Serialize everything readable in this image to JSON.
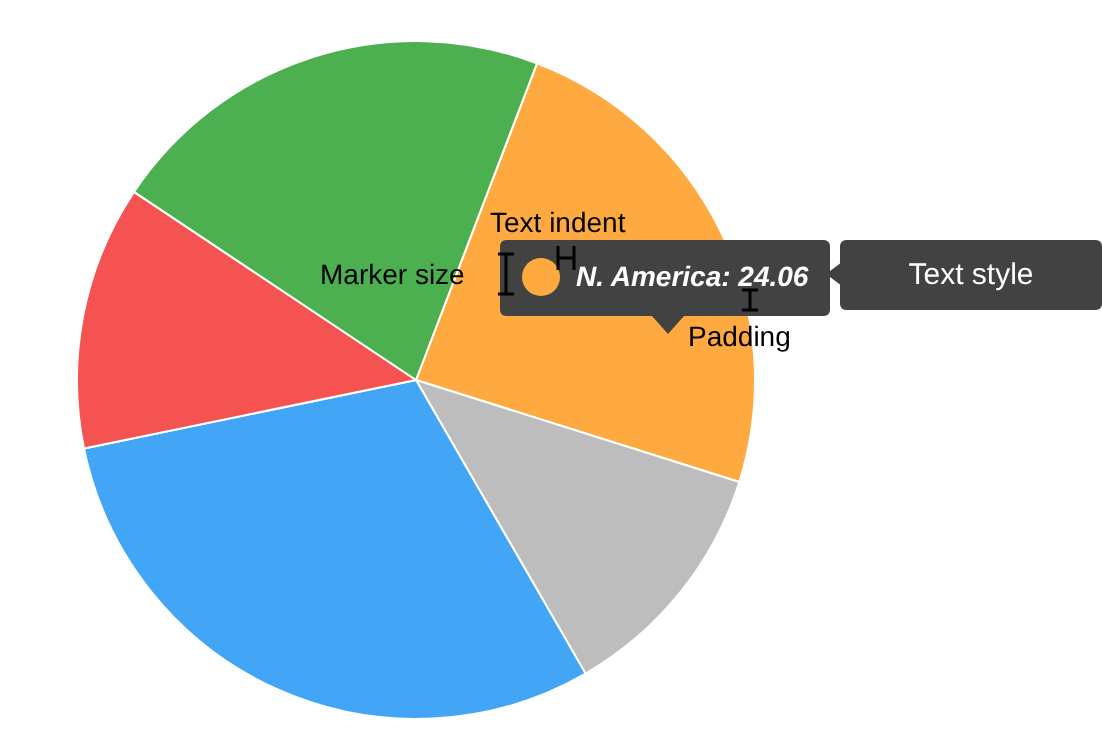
{
  "chart_data": {
    "type": "pie",
    "categories": [
      null,
      null,
      null,
      null,
      null
    ],
    "values": [
      24.06,
      11.8,
      30.1,
      12.6,
      21.44
    ],
    "colors": [
      "#ffaa40",
      "#bdbdbd",
      "#42a5f5",
      "#f55252",
      "#4caf50"
    ],
    "annotations": [
      "Text indent",
      "Marker size",
      "Padding",
      "Text style",
      "N. America: 24.06"
    ]
  }
}
